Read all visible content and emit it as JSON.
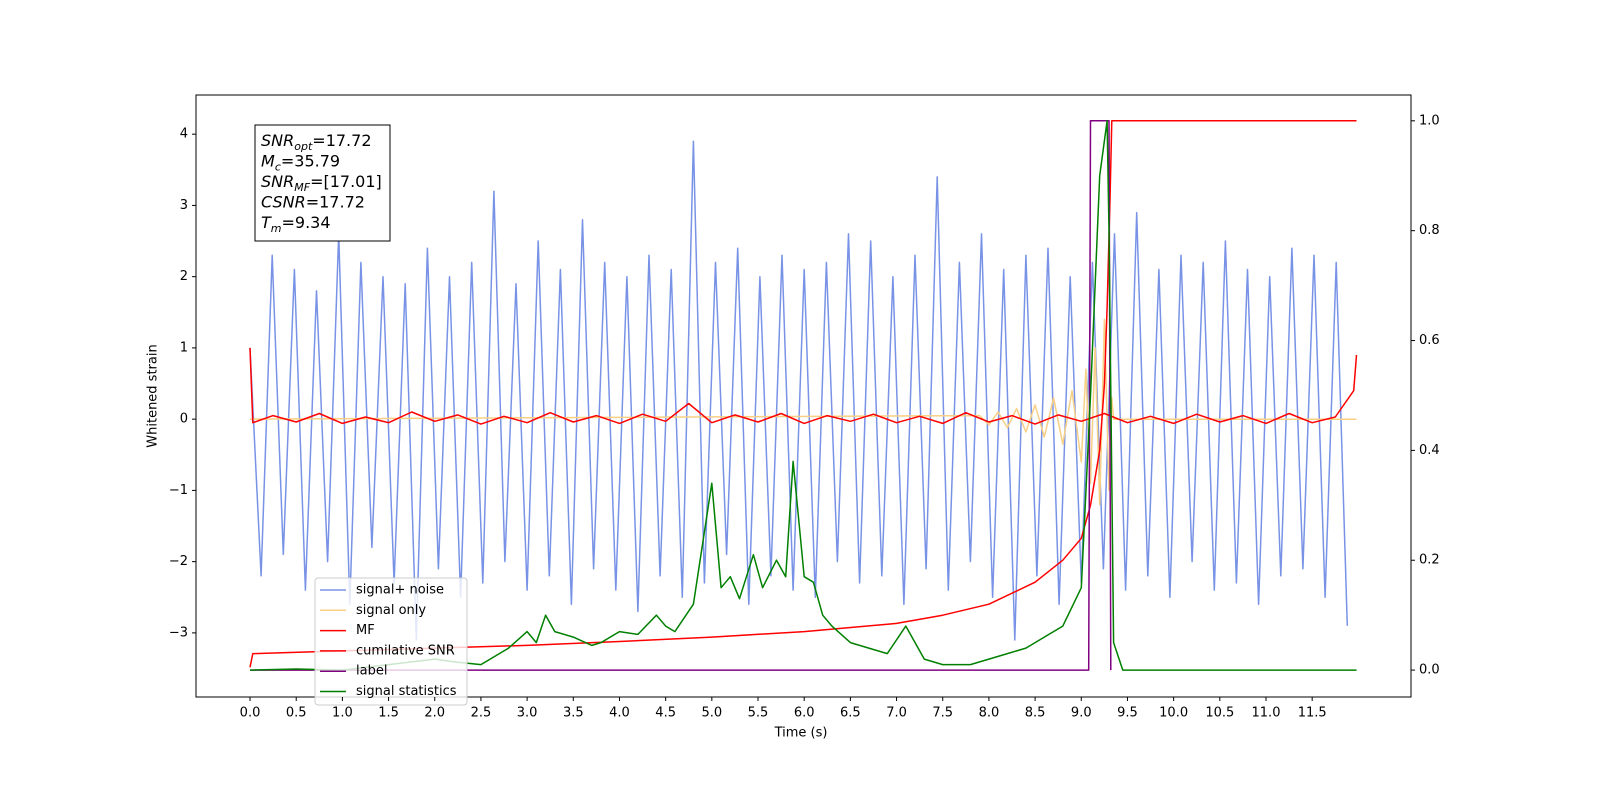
{
  "chart_data": {
    "type": "line",
    "xlabel": "Time (s)",
    "ylabel": "Whitened strain",
    "xlim": [
      -0.585,
      12.57
    ],
    "ylim": [
      -3.9,
      4.55
    ],
    "y2lim": [
      -0.049,
      1.047
    ],
    "xticks": [
      {
        "value": 0,
        "label": "0.0"
      },
      0.5,
      {
        "value": 1,
        "label": "1.0"
      },
      1.5,
      {
        "value": 2,
        "label": "2.0"
      },
      2.5,
      {
        "value": 3,
        "label": "3.0"
      },
      3.5,
      {
        "value": 4,
        "label": "4.0"
      },
      4.5,
      {
        "value": 5,
        "label": "5.0"
      },
      5.5,
      {
        "value": 6,
        "label": "6.0"
      },
      6.5,
      {
        "value": 7,
        "label": "7.0"
      },
      7.5,
      {
        "value": 8,
        "label": "8.0"
      },
      8.5,
      {
        "value": 9,
        "label": "9.0"
      },
      9.5,
      {
        "value": 10,
        "label": "10.0"
      },
      10.5,
      {
        "value": 11,
        "label": "11.0"
      },
      11.5
    ],
    "yticks": [
      {
        "value": -3,
        "label": "−3"
      },
      {
        "value": -2,
        "label": "−2"
      },
      {
        "value": -1,
        "label": "−1"
      },
      0,
      1,
      2,
      3,
      4
    ],
    "y2ticks": [
      {
        "value": 0,
        "label": "0.0"
      },
      0.2,
      0.4,
      0.6,
      0.8,
      {
        "value": 1,
        "label": "1.0"
      }
    ],
    "grid": false,
    "annotation": {
      "lines": [
        {
          "symbol": "SNR",
          "subscript": "opt",
          "text": "=17.72"
        },
        {
          "symbol": "M",
          "subscript": "c",
          "text": "=35.79"
        },
        {
          "symbol": "SNR",
          "subscript": "MF",
          "text": "=[17.01]"
        },
        {
          "symbol": "CSNR",
          "text": "=17.72"
        },
        {
          "symbol": "T",
          "subscript": "m",
          "text": "=9.34"
        }
      ]
    },
    "series": [
      {
        "name": "signal+ noise",
        "color": "#7893e6",
        "axis": "y",
        "x": [
          0,
          0.12,
          0.24,
          0.36,
          0.48,
          0.6,
          0.72,
          0.84,
          0.96,
          1.08,
          1.2,
          1.32,
          1.44,
          1.56,
          1.68,
          1.8,
          1.92,
          2.04,
          2.16,
          2.28,
          2.4,
          2.52,
          2.64,
          2.76,
          2.88,
          3,
          3.12,
          3.24,
          3.36,
          3.48,
          3.6,
          3.72,
          3.84,
          3.96,
          4.08,
          4.2,
          4.32,
          4.44,
          4.56,
          4.68,
          4.8,
          4.92,
          5.04,
          5.16,
          5.28,
          5.4,
          5.52,
          5.64,
          5.76,
          5.88,
          6,
          6.12,
          6.24,
          6.36,
          6.48,
          6.6,
          6.72,
          6.84,
          6.96,
          7.08,
          7.2,
          7.32,
          7.44,
          7.56,
          7.68,
          7.8,
          7.92,
          8.04,
          8.16,
          8.28,
          8.4,
          8.52,
          8.64,
          8.76,
          8.88,
          9,
          9.12,
          9.24,
          9.36,
          9.48,
          9.6,
          9.72,
          9.84,
          9.96,
          10.08,
          10.2,
          10.32,
          10.44,
          10.56,
          10.68,
          10.8,
          10.92,
          11.04,
          11.16,
          11.28,
          11.4,
          11.52,
          11.64,
          11.76,
          11.88
        ],
        "values": [
          1.0,
          -2.2,
          2.3,
          -1.9,
          2.1,
          -2.4,
          1.8,
          -2.0,
          2.6,
          -2.6,
          2.2,
          -1.8,
          2.0,
          -2.3,
          1.9,
          -3.1,
          2.4,
          -2.1,
          2.0,
          -2.5,
          2.2,
          -2.3,
          3.2,
          -2.0,
          1.9,
          -2.4,
          2.5,
          -2.2,
          2.1,
          -2.6,
          2.8,
          -2.1,
          2.2,
          -2.4,
          2.0,
          -2.7,
          2.3,
          -2.2,
          2.1,
          -2.5,
          3.9,
          -2.3,
          2.2,
          -1.9,
          2.4,
          -2.6,
          2.0,
          -2.2,
          2.3,
          -2.4,
          2.1,
          -2.5,
          2.2,
          -2.0,
          2.6,
          -2.3,
          2.5,
          -2.2,
          2.0,
          -2.6,
          2.3,
          -2.1,
          3.4,
          -2.4,
          2.2,
          -2.0,
          2.6,
          -2.5,
          2.1,
          -3.1,
          2.3,
          -2.2,
          2.4,
          -2.6,
          2.0,
          -2.3,
          2.2,
          -2.1,
          2.6,
          -2.4,
          2.9,
          -2.2,
          2.1,
          -2.5,
          2.3,
          -2.0,
          2.2,
          -2.4,
          2.5,
          -2.3,
          2.1,
          -2.6,
          2.0,
          -2.2,
          2.4,
          -2.1,
          2.3,
          -2.5,
          2.2,
          -2.9
        ]
      },
      {
        "name": "signal only",
        "color": "#f7cf85",
        "axis": "y",
        "x": [
          0,
          7.9,
          8.0,
          8.1,
          8.2,
          8.3,
          8.4,
          8.5,
          8.6,
          8.7,
          8.8,
          8.9,
          9.0,
          9.05,
          9.1,
          9.15,
          9.2,
          9.25,
          9.3,
          9.33,
          9.35,
          11.98
        ],
        "values": [
          0,
          0.05,
          -0.08,
          0.1,
          -0.12,
          0.15,
          -0.18,
          0.2,
          -0.25,
          0.3,
          -0.35,
          0.4,
          -0.6,
          0.7,
          -0.9,
          1.0,
          -1.2,
          1.4,
          -1.0,
          0.3,
          0,
          0
        ]
      },
      {
        "name": "MF",
        "color": "#ff0000",
        "axis": "y",
        "x": [
          0,
          0.03,
          0.25,
          0.5,
          0.75,
          1,
          1.25,
          1.5,
          1.75,
          2,
          2.25,
          2.5,
          2.75,
          3,
          3.25,
          3.5,
          3.75,
          4,
          4.25,
          4.5,
          4.75,
          5,
          5.25,
          5.5,
          5.75,
          6,
          6.25,
          6.5,
          6.75,
          7,
          7.25,
          7.5,
          7.75,
          8,
          8.25,
          8.5,
          8.75,
          9,
          9.25,
          9.5,
          9.75,
          10,
          10.25,
          10.5,
          10.75,
          11,
          11.25,
          11.5,
          11.75,
          11.95,
          11.98
        ],
        "values": [
          1.0,
          -0.05,
          0.05,
          -0.04,
          0.08,
          -0.06,
          0.03,
          -0.05,
          0.1,
          -0.03,
          0.06,
          -0.07,
          0.04,
          -0.05,
          0.09,
          -0.04,
          0.05,
          -0.06,
          0.07,
          -0.03,
          0.22,
          -0.05,
          0.06,
          -0.04,
          0.08,
          -0.06,
          0.05,
          -0.03,
          0.07,
          -0.05,
          0.04,
          -0.06,
          0.09,
          -0.04,
          0.05,
          -0.07,
          0.06,
          -0.03,
          0.08,
          -0.05,
          0.04,
          -0.06,
          0.07,
          -0.04,
          0.05,
          -0.06,
          0.08,
          -0.05,
          0.03,
          0.4,
          0.9
        ]
      },
      {
        "name": "cumilative SNR",
        "color": "#ff0000",
        "axis": "y2",
        "x": [
          0,
          0.03,
          1,
          2,
          3,
          4,
          5,
          6,
          7,
          7.5,
          8,
          8.5,
          8.8,
          9,
          9.1,
          9.2,
          9.25,
          9.28,
          9.31,
          9.33,
          11.98
        ],
        "values": [
          0.005,
          0.03,
          0.035,
          0.04,
          0.045,
          0.052,
          0.06,
          0.07,
          0.085,
          0.1,
          0.12,
          0.16,
          0.2,
          0.24,
          0.3,
          0.4,
          0.52,
          0.66,
          0.85,
          1.0,
          1.0
        ]
      },
      {
        "name": "label",
        "color": "#800080",
        "axis": "y2",
        "x": [
          0,
          9.08,
          9.1,
          9.3,
          9.32
        ],
        "values": [
          0,
          0,
          1,
          1,
          0
        ]
      },
      {
        "name": "signal statistics",
        "color": "#008000",
        "axis": "y2",
        "x": [
          0,
          0.5,
          1,
          1.5,
          2,
          2.2,
          2.5,
          2.8,
          3.0,
          3.1,
          3.2,
          3.3,
          3.5,
          3.7,
          3.8,
          4.0,
          4.2,
          4.4,
          4.5,
          4.6,
          4.8,
          5.0,
          5.1,
          5.2,
          5.3,
          5.45,
          5.55,
          5.7,
          5.8,
          5.88,
          6.0,
          6.1,
          6.2,
          6.3,
          6.5,
          6.7,
          6.9,
          7.1,
          7.3,
          7.5,
          7.8,
          8.0,
          8.2,
          8.4,
          8.6,
          8.8,
          9.0,
          9.1,
          9.2,
          9.28,
          9.3,
          9.35,
          9.45,
          11.98
        ],
        "values": [
          0,
          0.002,
          0,
          0.01,
          0.02,
          0.015,
          0.01,
          0.04,
          0.07,
          0.05,
          0.1,
          0.07,
          0.06,
          0.045,
          0.05,
          0.07,
          0.065,
          0.1,
          0.08,
          0.07,
          0.12,
          0.34,
          0.15,
          0.17,
          0.13,
          0.21,
          0.15,
          0.2,
          0.17,
          0.38,
          0.17,
          0.16,
          0.1,
          0.08,
          0.05,
          0.04,
          0.03,
          0.08,
          0.02,
          0.01,
          0.01,
          0.02,
          0.03,
          0.04,
          0.06,
          0.08,
          0.15,
          0.5,
          0.9,
          1.0,
          0.8,
          0.05,
          0,
          0
        ]
      }
    ]
  }
}
